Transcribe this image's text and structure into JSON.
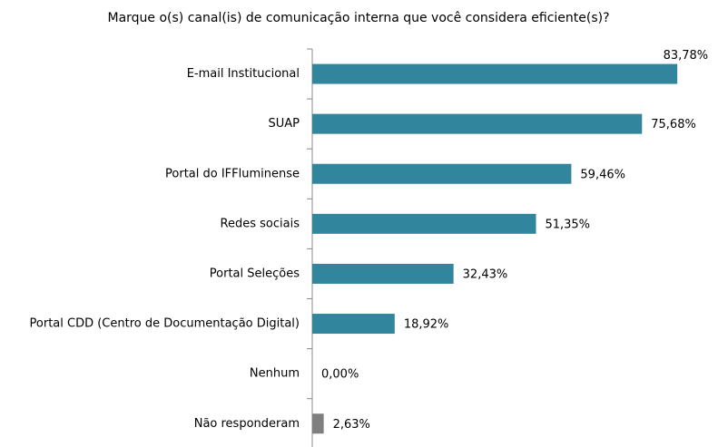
{
  "chart_data": {
    "type": "bar",
    "orientation": "horizontal",
    "title": "Marque o(s) canal(is) de comunicação interna que você considera eficiente(s)?",
    "categories": [
      "E-mail Institucional",
      "SUAP",
      "Portal do IFFluminense",
      "Redes sociais",
      "Portal Seleções",
      "Portal CDD (Centro de Documentação Digital)",
      "Nenhum",
      "Não responderam"
    ],
    "values": [
      83.78,
      75.68,
      59.46,
      51.35,
      32.43,
      18.92,
      0,
      2.63
    ],
    "value_labels": [
      "83,78%",
      "75,68%",
      "59,46%",
      "51,35%",
      "32,43%",
      "18,92%",
      "0,00%",
      "2,63%"
    ],
    "colors": [
      "#31859c",
      "#31859c",
      "#31859c",
      "#31859c",
      "#31859c",
      "#31859c",
      "#31859c",
      "#7f7f7f"
    ]
  }
}
